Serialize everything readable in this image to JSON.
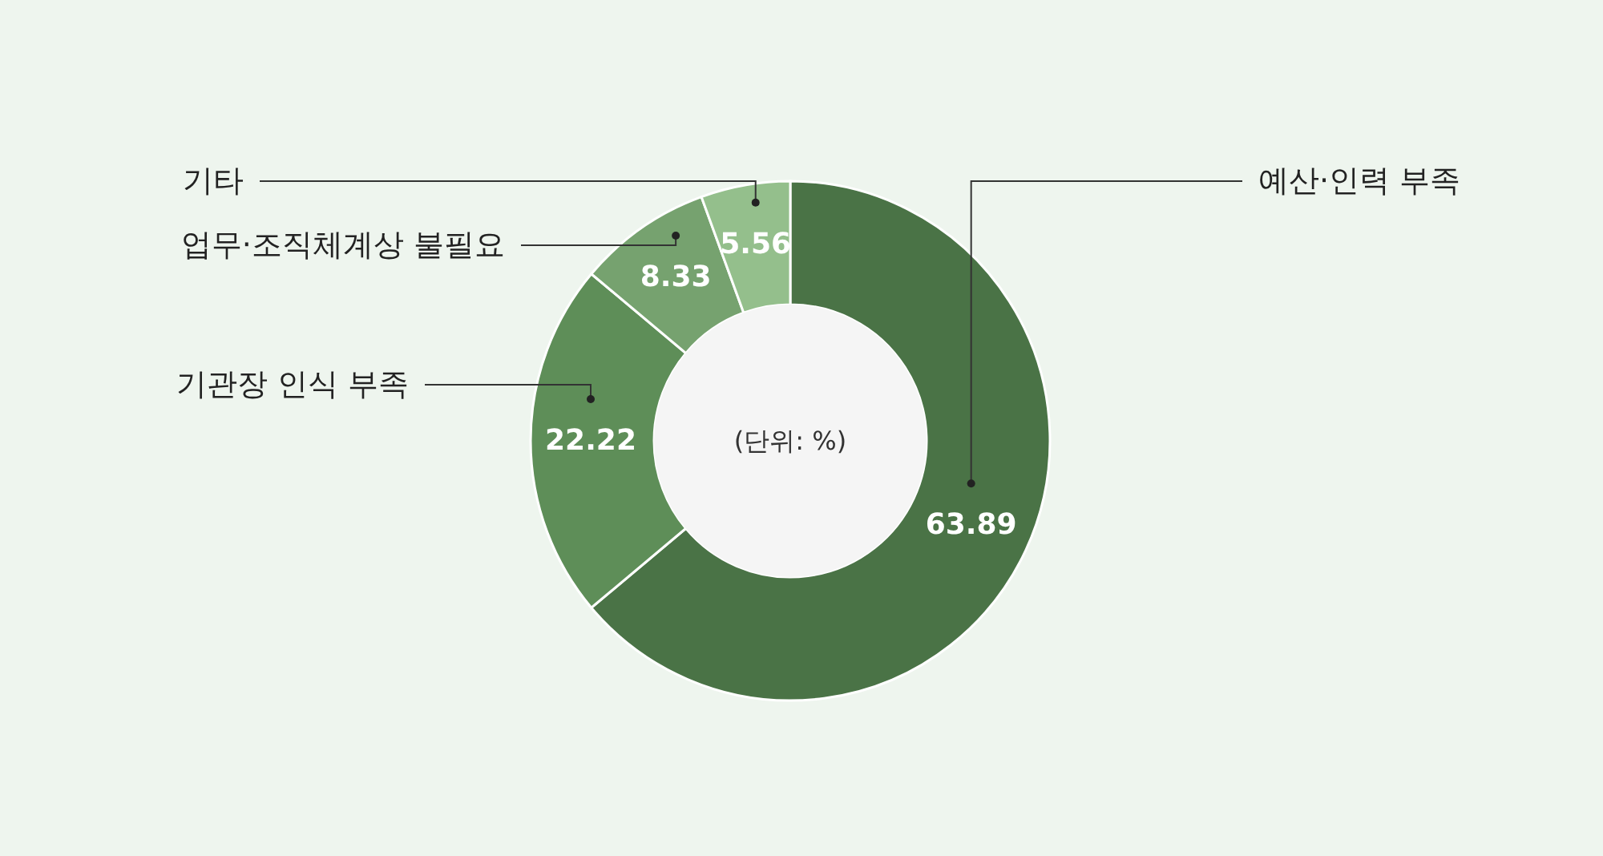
{
  "chart_data": {
    "type": "donut",
    "categories": [
      "예산·인력 부족",
      "기관장 인식 부족",
      "업무·조직체계상 불필요",
      "기타"
    ],
    "values": [
      63.89,
      22.22,
      8.33,
      5.56
    ],
    "colors": [
      "#4a7346",
      "#5e8e58",
      "#76a26f",
      "#94bf8c"
    ],
    "data_labels": true,
    "annotations": [
      "(단위: %)"
    ]
  }
}
